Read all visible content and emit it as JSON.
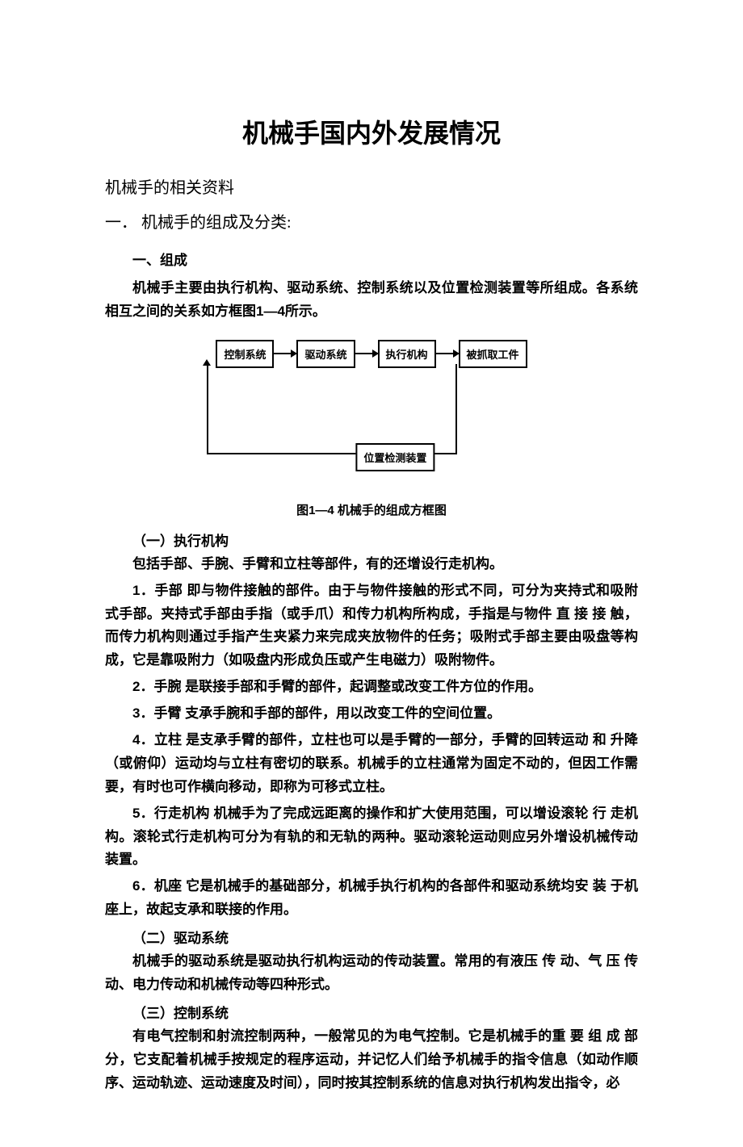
{
  "title": "机械手国内外发展情况",
  "subtitle": "机械手的相关资料",
  "section_num": "一．  机械手的组成及分类:",
  "heading1": "一、组成",
  "para1": "机械手主要由执行机构、驱动系统、控制系统以及位置检测装置等所组成。各系统相互之间的关系如方框图1—4所示。",
  "diagram": {
    "box1": "控制系统",
    "box2": "驱动系统",
    "box3": "执行机构",
    "box4": "被抓取工件",
    "box5": "位置检测装置"
  },
  "caption": "图1—4  机械手的组成方框图",
  "sub1": "（一）执行机构",
  "para2": "包括手部、手腕、手臂和立柱等部件，有的还增设行走机构。",
  "para3": "1．手部  即与物件接触的部件。由于与物件接触的形式不同，可分为夹持式和吸附式手部。夹持式手部由手指（或手爪）和传力机构所构成，手指是与物件 直 接 接 触，而传力机构则通过手指产生夹紧力来完成夹放物件的任务；吸附式手部主要由吸盘等构成，它是靠吸附力（如吸盘内形成负压或产生电磁力）吸附物件。",
  "para4": "2．手腕  是联接手部和手臂的部件，起调整或改变工件方位的作用。",
  "para5": "3．手臂  支承手腕和手部的部件，用以改变工件的空间位置。",
  "para6": "4．立柱  是支承手臂的部件，立柱也可以是手臂的一部分，手臂的回转运动 和 升降（或俯仰）运动均与立柱有密切的联系。机械手的立柱通常为固定不动的，但因工作需要，有时也可作横向移动，即称为可移式立柱。",
  "para7": "5．行走机构  机械手为了完成远距离的操作和扩大使用范围，可以增设滚轮 行 走机构。滚轮式行走机构可分为有轨的和无轨的两种。驱动滚轮运动则应另外增设机械传动装置。",
  "para8": "6．机座  它是机械手的基础部分，机械手执行机构的各部件和驱动系统均安 装 于机座上，故起支承和联接的作用。",
  "sub2": "（二）驱动系统",
  "para9": "机械手的驱动系统是驱动执行机构运动的传动装置。常用的有液压 传 动、气 压 传动、电力传动和机械传动等四种形式。",
  "sub3": "（三）控制系统",
  "para10": "有电气控制和射流控制两种，一般常见的为电气控制。它是机械手的重 要 组 成 部分，它支配着机械手按规定的程序运动，并记忆人们给予机械手的指令信息（如动作顺序、运动轨迹、运动速度及时间），同时按其控制系统的信息对执行机构发出指令，必"
}
